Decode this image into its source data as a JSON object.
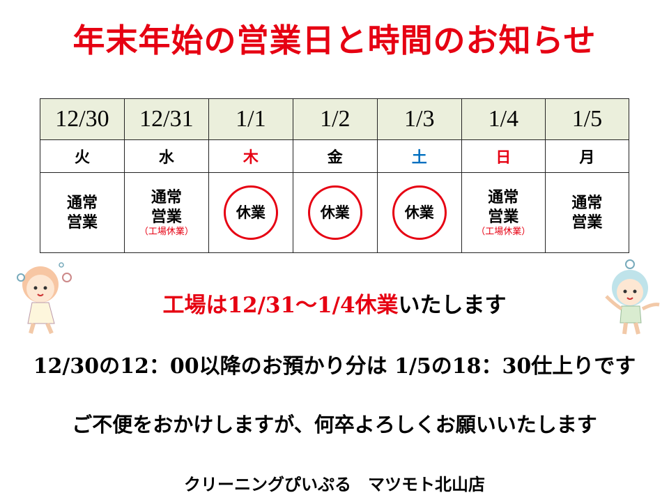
{
  "title": "年末年始の営業日と時間のお知らせ",
  "schedule": [
    {
      "date": "12/30",
      "day": "火",
      "day_color": "#000000",
      "status": "通常営業",
      "status_lines": [
        "通常",
        "営業"
      ],
      "note": "",
      "closed": false
    },
    {
      "date": "12/31",
      "day": "水",
      "day_color": "#000000",
      "status_lines": [
        "通常",
        "営業"
      ],
      "note": "（工場休業）",
      "closed": false
    },
    {
      "date": "1/1",
      "day": "木",
      "day_color": "#e60012",
      "status_lines": [
        "休業"
      ],
      "note": "",
      "closed": true
    },
    {
      "date": "1/2",
      "day": "金",
      "day_color": "#000000",
      "status_lines": [
        "休業"
      ],
      "note": "",
      "closed": true
    },
    {
      "date": "1/3",
      "day": "土",
      "day_color": "#0070c0",
      "status_lines": [
        "休業"
      ],
      "note": "",
      "closed": true
    },
    {
      "date": "1/4",
      "day": "日",
      "day_color": "#e60012",
      "status_lines": [
        "通常",
        "営業"
      ],
      "note": "（工場休業）",
      "closed": false
    },
    {
      "date": "1/5",
      "day": "月",
      "day_color": "#000000",
      "status_lines": [
        "通常",
        "営業"
      ],
      "note": "",
      "closed": false
    }
  ],
  "notice1": {
    "red": "工場は12/31～1/4休業",
    "black": "いたします"
  },
  "notice2": "12/30の12：00以降のお預かり分は 1/5の18：30仕上りです",
  "notice3": "ご不便をおかけしますが、何卒よろしくお願いいたします",
  "footer": "クリーニングぴいぷる　マツモト北山店",
  "colors": {
    "accent": "#e60012",
    "header_bg": "#ebefdc",
    "saturday": "#0070c0"
  }
}
